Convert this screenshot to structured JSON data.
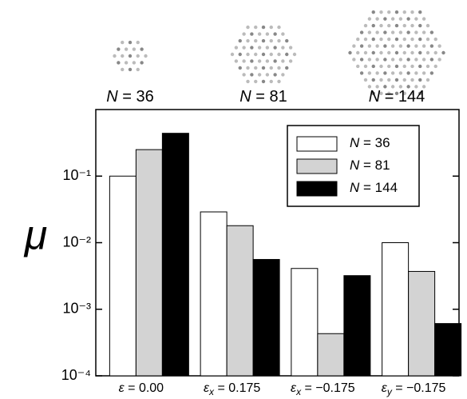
{
  "chart_data": {
    "type": "bar",
    "y_label": "μ",
    "log_scale": true,
    "categories": [
      "ε = 0.00",
      "εx = 0.175",
      "εx = −0.175",
      "εy = −0.175"
    ],
    "series": [
      {
        "name": "N = 36",
        "color": "#ffffff",
        "values": [
          0.1,
          0.029,
          0.0041,
          0.01
        ]
      },
      {
        "name": "N = 81",
        "color": "#d3d3d3",
        "values": [
          0.25,
          0.018,
          0.00043,
          0.0037
        ]
      },
      {
        "name": "N = 144",
        "color": "#000000",
        "values": [
          0.44,
          0.0056,
          0.0032,
          0.00061
        ]
      }
    ],
    "ylim": [
      0.0001,
      1
    ],
    "yticks": [
      {
        "value": 0.0001,
        "label": "10⁻⁴"
      },
      {
        "value": 0.001,
        "label": "10⁻³"
      },
      {
        "value": 0.01,
        "label": "10⁻²"
      },
      {
        "value": 0.1,
        "label": "10⁻¹"
      }
    ],
    "legend": "upper right"
  }
}
